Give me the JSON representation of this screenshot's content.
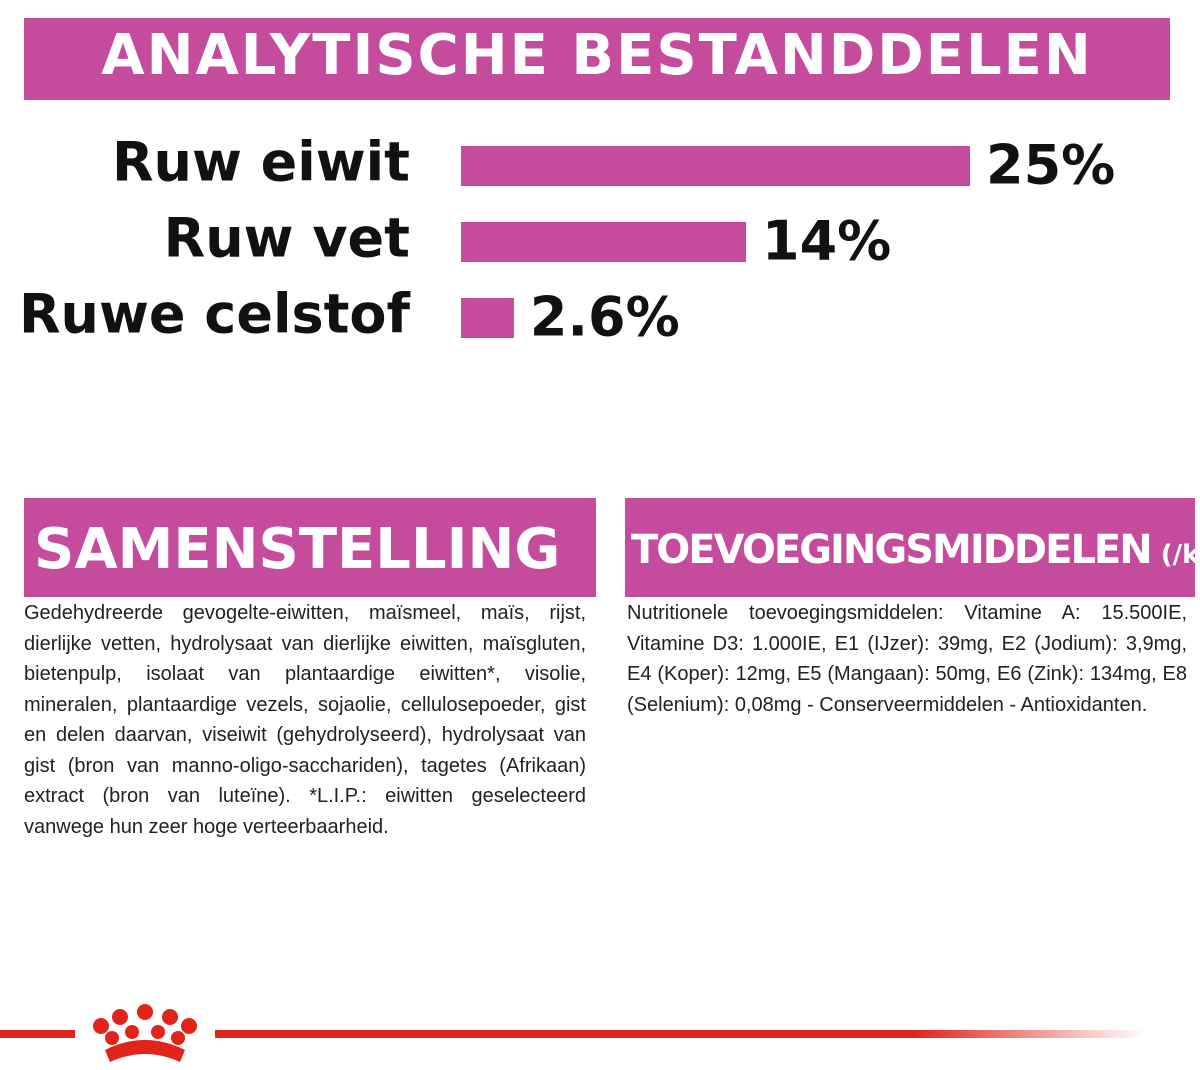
{
  "chart_data": {
    "type": "bar",
    "orientation": "horizontal",
    "title": "ANALYTISCHE BESTANDDELEN",
    "categories": [
      "Ruw eiwit",
      "Ruw vet",
      "Ruwe celstof"
    ],
    "values": [
      25,
      14,
      2.6
    ],
    "value_labels": [
      "25%",
      "14%",
      "2.6%"
    ],
    "color": "#c54b9c"
  },
  "composition": {
    "title": "SAMENSTELLING",
    "text": "Gedehydreerde gevogelte-eiwitten, maïsmeel, maïs, rijst, dierlijke vetten, hydrolysaat van dierlijke eiwitten, maïsgluten, bietenpulp, isolaat van plantaardige eiwitten*, visolie, mineralen, plantaardige vezels, sojaolie, cellulosepoeder, gist en delen daarvan, viseiwit (gehydrolyseerd), hydrolysaat van gist (bron van manno-oligo-sacchariden), tagetes (Afrikaan) extract (bron van luteïne). *L.I.P.: eiwitten geselecteerd vanwege hun zeer hoge verteerbaarheid."
  },
  "additives": {
    "title": "TOEVOEGINGSMIDDELEN",
    "unit": "(/kg)",
    "text": "Nutritionele toevoegingsmiddelen: Vitamine A: 15.500IE, Vitamine D3: 1.000IE, E1 (IJzer): 39mg, E2 (Jodium): 3,9mg, E4 (Koper): 12mg, E5 (Mangaan): 50mg, E6 (Zink): 134mg, E8 (Selenium): 0,08mg - Conserveermiddelen - Antioxidanten."
  }
}
